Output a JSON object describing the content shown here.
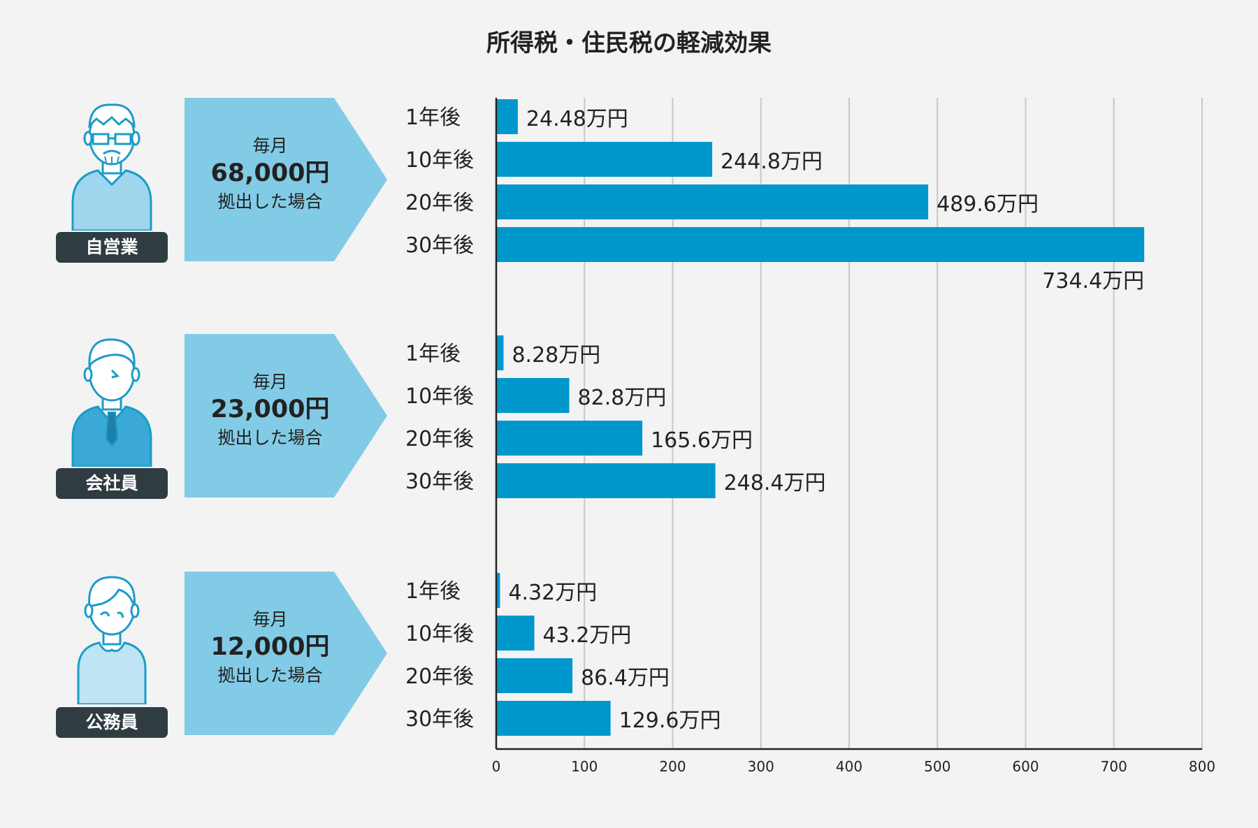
{
  "title": "所得税・住民税の軽減効果",
  "colors": {
    "bar": "#0098cc",
    "arrow": "#82cbe6",
    "badge": "#2f3c42",
    "grid": "#c8c8c8",
    "avatar_outline": "#1a9cc7"
  },
  "groups": [
    {
      "occupation": "自営業",
      "monthly_label": "毎月",
      "amount": "68,000円",
      "suffix": "拠出した場合",
      "icon": "elderly-man-glasses-icon"
    },
    {
      "occupation": "会社員",
      "monthly_label": "毎月",
      "amount": "23,000円",
      "suffix": "拠出した場合",
      "icon": "office-worker-tie-icon"
    },
    {
      "occupation": "公務員",
      "monthly_label": "毎月",
      "amount": "12,000円",
      "suffix": "拠出した場合",
      "icon": "civil-servant-icon"
    }
  ],
  "chart_data": {
    "type": "bar",
    "orientation": "horizontal",
    "title": "所得税・住民税の軽減効果",
    "unit": "万円",
    "xlim": [
      0,
      800
    ],
    "xticks": [
      0,
      100,
      200,
      300,
      400,
      500,
      600,
      700,
      800
    ],
    "grid": true,
    "categories": [
      "1年後",
      "10年後",
      "20年後",
      "30年後"
    ],
    "series": [
      {
        "name": "自営業",
        "values": [
          24.48,
          244.8,
          489.6,
          734.4
        ],
        "labels": [
          "24.48万円",
          "244.8万円",
          "489.6万円",
          "734.4万円"
        ]
      },
      {
        "name": "会社員",
        "values": [
          8.28,
          82.8,
          165.6,
          248.4
        ],
        "labels": [
          "8.28万円",
          "82.8万円",
          "165.6万円",
          "248.4万円"
        ]
      },
      {
        "name": "公務員",
        "values": [
          4.32,
          43.2,
          86.4,
          129.6
        ],
        "labels": [
          "4.32万円",
          "43.2万円",
          "86.4万円",
          "129.6万円"
        ]
      }
    ]
  }
}
